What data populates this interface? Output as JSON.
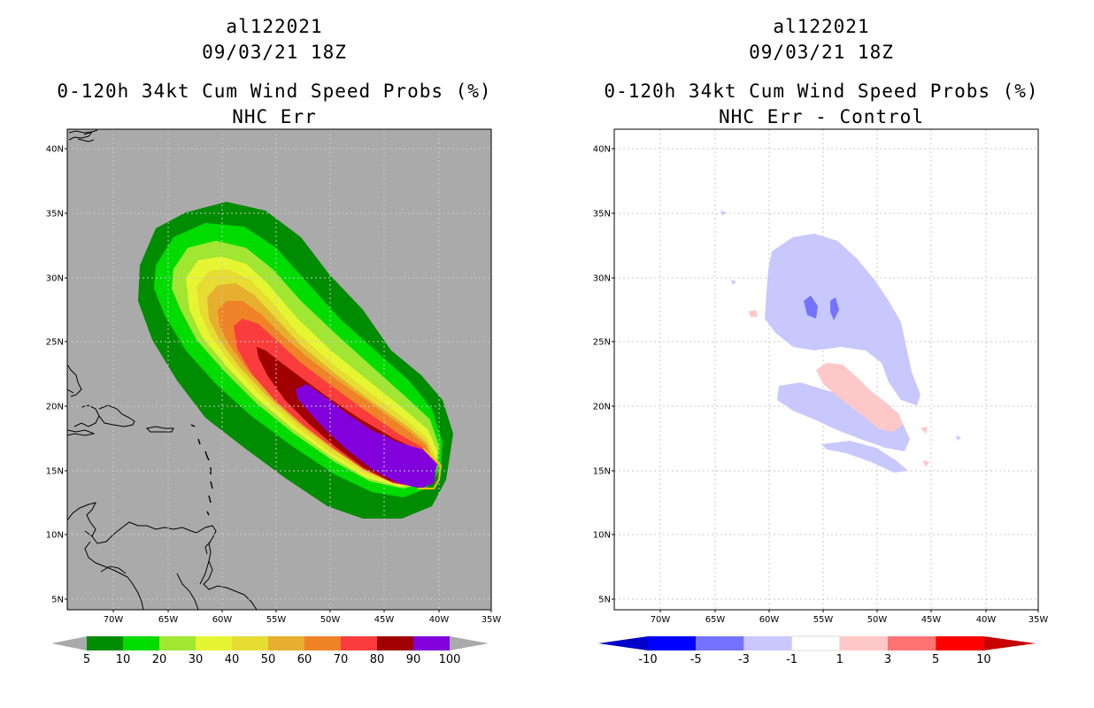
{
  "left_panel": {
    "storm_id": "al122021",
    "datetime": "09/03/21 18Z",
    "product": "0-120h 34kt Cum Wind Speed Probs (%)",
    "subtitle": "NHC Err",
    "colorbar": {
      "labels": [
        "5",
        "10",
        "20",
        "30",
        "40",
        "50",
        "60",
        "70",
        "80",
        "90",
        "100"
      ],
      "colors": [
        "#008c00",
        "#00dc00",
        "#a0e632",
        "#e6f532",
        "#e6dc32",
        "#e6af2d",
        "#f08228",
        "#fa3c3c",
        "#a00000",
        "#8200dc"
      ]
    }
  },
  "right_panel": {
    "storm_id": "al122021",
    "datetime": "09/03/21 18Z",
    "product": "0-120h 34kt Cum Wind Speed Probs (%)",
    "subtitle": "NHC Err - Control",
    "colorbar": {
      "labels": [
        "-10",
        "-5",
        "-3",
        "-1",
        "1",
        "3",
        "5",
        "10"
      ],
      "colors": [
        "#0000c8",
        "#0000ff",
        "#7373ff",
        "#c8c8ff",
        "#ffffff",
        "#ffc8c8",
        "#ff7373",
        "#ff0000",
        "#c80000"
      ]
    }
  },
  "axes": {
    "lat_labels": [
      "40N",
      "35N",
      "30N",
      "25N",
      "20N",
      "15N",
      "10N",
      "5N"
    ],
    "lon_labels": [
      "70W",
      "65W",
      "60W",
      "55W",
      "50W",
      "45W",
      "40W",
      "35W"
    ]
  },
  "map_colors": {
    "ocean_left": "#aaaaaa",
    "ocean_right": "#ffffff",
    "grid": "#c8c8c8"
  }
}
